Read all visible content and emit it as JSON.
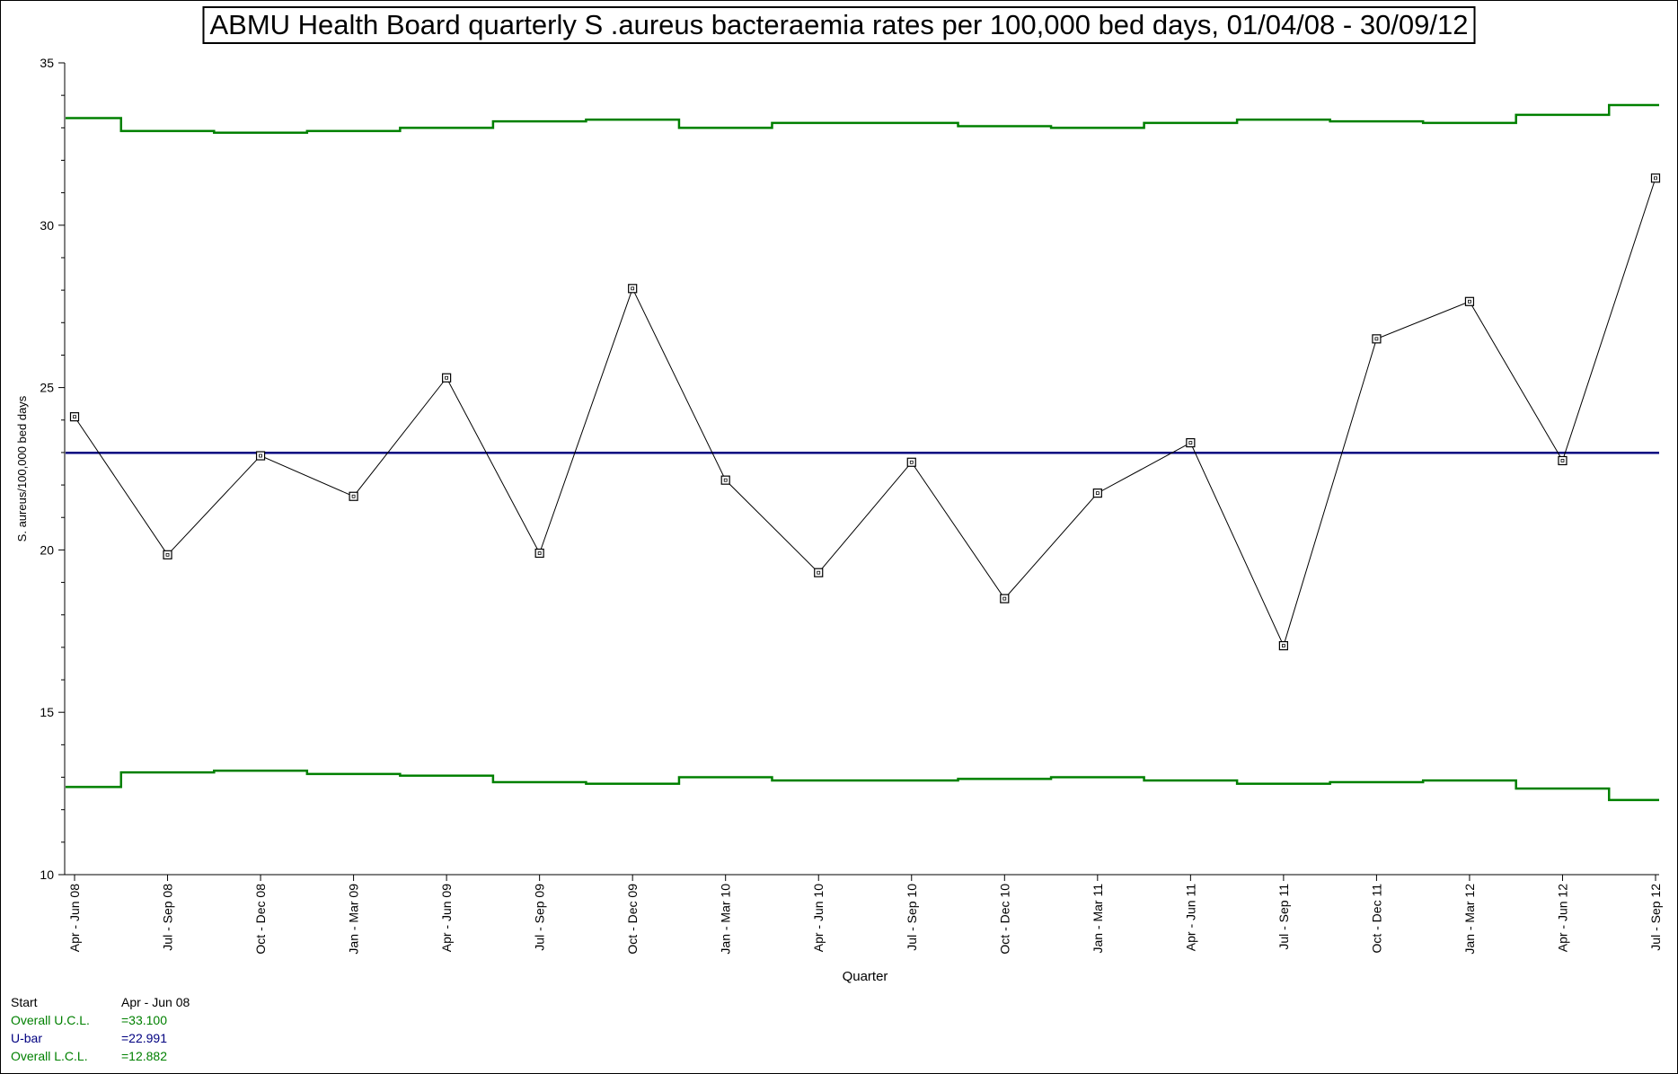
{
  "chart_data": {
    "type": "line",
    "title": "ABMU Health Board quarterly S .aureus bacteraemia rates per 100,000 bed days, 01/04/08 - 30/09/12",
    "xlabel": "Quarter",
    "ylabel": "S. aureus/100,000 bed days",
    "ylim": [
      10,
      35
    ],
    "yticks": [
      10,
      15,
      20,
      25,
      30,
      35
    ],
    "grid": false,
    "categories": [
      "Apr - Jun 08",
      "Jul - Sep 08",
      "Oct - Dec 08",
      "Jan - Mar 09",
      "Apr - Jun 09",
      "Jul - Sep 09",
      "Oct - Dec 09",
      "Jan - Mar 10",
      "Apr - Jun 10",
      "Jul - Sep 10",
      "Oct - Dec 10",
      "Jan - Mar 11",
      "Apr - Jun 11",
      "Jul - Sep 11",
      "Oct - Dec 11",
      "Jan - Mar 12",
      "Apr - Jun 12",
      "Jul - Sep 12"
    ],
    "series": [
      {
        "values": [
          24.1,
          19.85,
          22.9,
          21.65,
          25.3,
          19.9,
          28.05,
          22.15,
          19.3,
          22.7,
          18.5,
          21.75,
          23.3,
          17.05,
          26.5,
          27.65,
          22.75,
          31.45
        ],
        "color": "#000000",
        "marker": "square"
      },
      {
        "values": [
          33.3,
          32.9,
          32.85,
          32.9,
          33.0,
          33.2,
          33.25,
          33.0,
          33.15,
          33.15,
          33.05,
          33.0,
          33.15,
          33.25,
          33.2,
          33.15,
          33.4,
          33.7
        ],
        "color": "#008000",
        "style": "step"
      },
      {
        "values": [
          12.7,
          13.15,
          13.2,
          13.1,
          13.05,
          12.85,
          12.8,
          13.0,
          12.9,
          12.9,
          12.95,
          13.0,
          12.9,
          12.8,
          12.85,
          12.9,
          12.65,
          12.3
        ],
        "color": "#008000",
        "style": "step"
      },
      {
        "values": [
          22.991,
          22.991,
          22.991,
          22.991,
          22.991,
          22.991,
          22.991,
          22.991,
          22.991,
          22.991,
          22.991,
          22.991,
          22.991,
          22.991,
          22.991,
          22.991,
          22.991,
          22.991
        ],
        "color": "#000080",
        "style": "line"
      }
    ]
  },
  "footer": {
    "start_label": "Start",
    "start_value": "Apr - Jun 08",
    "ucl_label": "Overall U.C.L.",
    "ucl_value": "=33.100",
    "ubar_label": "U-bar",
    "ubar_value": "=22.991",
    "lcl_label": "Overall L.C.L.",
    "lcl_value": "=12.882"
  },
  "colors": {
    "control_limits": "#008000",
    "centre_line": "#000080",
    "data": "#000000"
  }
}
